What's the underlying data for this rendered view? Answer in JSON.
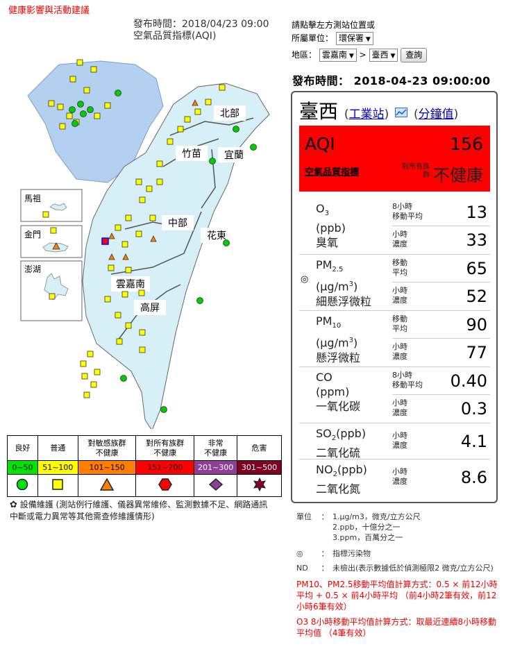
{
  "header": {
    "health_link": "健康影響與活動建議",
    "publish_time": "發布時間：2018/04/23 09:00",
    "index_name": "空氣品質指標(AQI)"
  },
  "controls": {
    "hint": "請點擊左方測站位置或",
    "agency_label": "所屬單位：",
    "agency_value": "環保署",
    "region_label": "地區：",
    "region_value": "雲嘉南",
    "arrow_sep": ">",
    "site_value": "臺西",
    "query_button": "查詢"
  },
  "publish_right": "發布時間： 2018-04-23 09:00:00",
  "map": {
    "region_labels": [
      "北部",
      "竹苗",
      "宜蘭",
      "中部",
      "花東",
      "雲嘉南",
      "高屏"
    ],
    "inset_labels": [
      "馬祖",
      "金門",
      "澎湖"
    ]
  },
  "station": {
    "name": "臺西",
    "open_paren": "(",
    "type_link": "工業站",
    "mid_paren": ")",
    "interval_open": "(",
    "interval_link": "分鐘值",
    "close_paren": ")",
    "aqi_label": "AQI",
    "aqi_value": "156",
    "aqi_index_link": "空氣品質指標",
    "group_text": "對所有族群",
    "status": "不健康",
    "pollutants": [
      {
        "name": "O3",
        "unit": "(ppb)",
        "cn": "臭氧",
        "l1": "8小時\n移動平均",
        "v1": "13",
        "l2": "小時\n濃度",
        "v2": "33"
      },
      {
        "name": "PM2.5",
        "unit": "(μg/m3)",
        "cn": "細懸浮微粒",
        "l1": "移動\n平均",
        "v1": "65",
        "l2": "小時\n濃度",
        "v2": "52"
      },
      {
        "name": "PM10",
        "unit": "(μg/m3)",
        "cn": "懸浮微粒",
        "l1": "移動\n平均",
        "v1": "90",
        "l2": "小時\n濃度",
        "v2": "77"
      },
      {
        "name": "CO",
        "unit": "(ppm)",
        "cn": "一氧化碳",
        "l1": "8小時\n移動平均",
        "v1": "0.40",
        "l2": "小時\n濃度",
        "v2": "0.3"
      },
      {
        "name": "SO2(ppb)",
        "cn": "二氧化硫",
        "l2": "小時\n濃度",
        "v2": "4.1"
      },
      {
        "name": "NO2(ppb)",
        "cn": "二氧化氮",
        "l2": "小時\n濃度",
        "v2": "8.6"
      }
    ],
    "indicator_symbol": "◎"
  },
  "legend": {
    "headers": [
      "良好",
      "普通",
      "對敏感族群\n不健康",
      "對所有族群\n不健康",
      "非常\n不健康",
      "危害"
    ],
    "ranges": [
      "0~50",
      "51~100",
      "101~150",
      "151~200",
      "201~300",
      "301~500"
    ],
    "colors": [
      "#00e400",
      "#ffff00",
      "#ff7e00",
      "#ff0000",
      "#8f3f97",
      "#7e0023"
    ],
    "maintenance": "設備維護 (測站例行維護、儀器異常維修、監測數據不足、網路通訊中斷或電力異常等其他需查修維護情形)"
  },
  "notes": {
    "unit_label": "單位",
    "colon": "：",
    "units": [
      "1.μg/m3，微克/立方公尺",
      "2.ppb，十億分之一",
      "3.ppm，百萬分之一"
    ],
    "indicator_symbol": "◎",
    "indicator_text": "指標污染物",
    "nd_label": "ND",
    "nd_text": "未檢出(表示數據低於偵測極限2 微克/立方公尺)",
    "pm_formula": "PM10、PM2.5移動平均值計算方式：0.5 × 前12小時平均 + 0.5 × 前4小時平均 （前4小時2筆有效，前12小時6筆有效）",
    "o3_formula": "O3 8小時移動平均值計算方式：取最近連續8小時移動平均值 （4筆有效）"
  }
}
